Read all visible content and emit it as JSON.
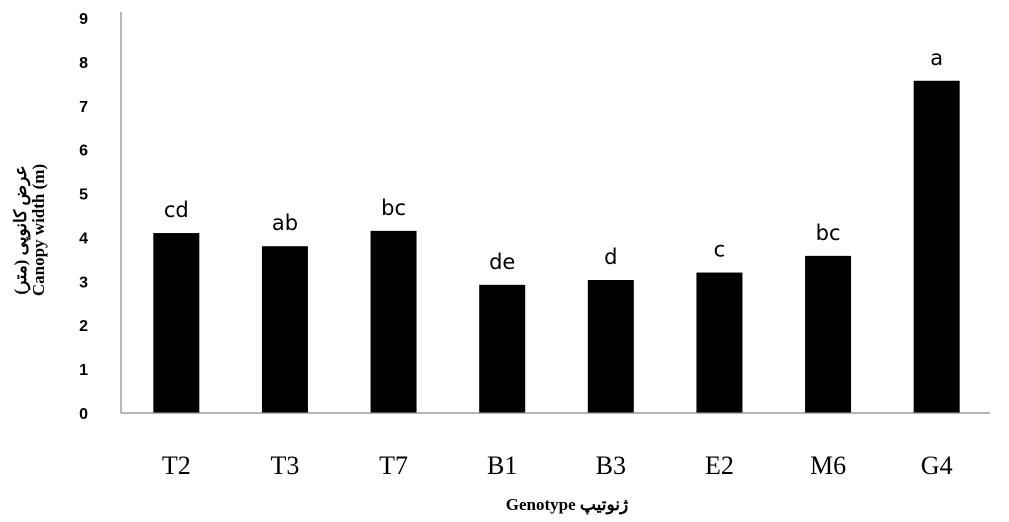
{
  "chart_data": {
    "type": "bar",
    "categories": [
      "T2",
      "T3",
      "T7",
      "B1",
      "B3",
      "E2",
      "M6",
      "G4"
    ],
    "values": [
      4.1,
      3.8,
      4.15,
      2.92,
      3.03,
      3.2,
      3.58,
      7.57
    ],
    "data_labels": [
      "cd",
      "ab",
      "bc",
      "de",
      "d",
      "c",
      "bc",
      "a"
    ],
    "ylim": [
      0,
      9
    ],
    "yticks": [
      0,
      1,
      2,
      3,
      4,
      5,
      6,
      7,
      8,
      9
    ],
    "xlabel": "Genotype   ژنوتیپ",
    "ylabel_line1": "عرض کانوپی (متر)",
    "ylabel_line2": "Canopy width (m)",
    "bar_color": "#000000",
    "grid": false,
    "legend": "none"
  }
}
